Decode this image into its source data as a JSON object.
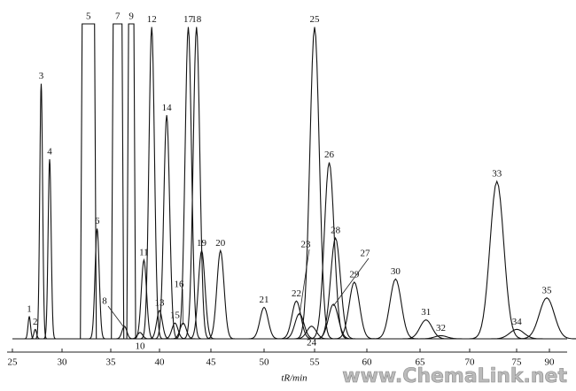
{
  "chart_data": {
    "type": "chromatogram",
    "x_label": "tR/min",
    "watermark": "www.ChemaLink.net",
    "xticks": [
      25,
      30,
      35,
      40,
      45,
      50,
      55,
      60,
      65,
      70,
      75,
      90
    ],
    "ylim": [
      0,
      100
    ],
    "color": "#111111",
    "peaks": [
      {
        "label": "1",
        "x": 26.7,
        "value": 7
      },
      {
        "label": "2",
        "x": 27.3,
        "value": 3
      },
      {
        "label": "3",
        "x": 27.9,
        "value": 81
      },
      {
        "label": "4",
        "x": 28.75,
        "value": 57
      },
      {
        "label": "5",
        "x": 32.7,
        "value": 100
      },
      {
        "label": "6",
        "x": 33.6,
        "value": 35
      },
      {
        "label": "7",
        "x": 35.7,
        "value": 100
      },
      {
        "label": "8",
        "x": 36.4,
        "value": 4
      },
      {
        "label": "9",
        "x": 37.1,
        "value": 100
      },
      {
        "label": "10",
        "x": 38.0,
        "value": 2
      },
      {
        "label": "11",
        "x": 38.4,
        "value": 25
      },
      {
        "label": "12",
        "x": 39.2,
        "value": 99
      },
      {
        "label": "13",
        "x": 40.0,
        "value": 9
      },
      {
        "label": "14",
        "x": 40.7,
        "value": 71
      },
      {
        "label": "15",
        "x": 41.5,
        "value": 5
      },
      {
        "label": "16",
        "x": 42.3,
        "value": 5
      },
      {
        "label": "17",
        "x": 42.8,
        "value": 99
      },
      {
        "label": "18",
        "x": 43.6,
        "value": 99
      },
      {
        "label": "19",
        "x": 44.1,
        "value": 28
      },
      {
        "label": "20",
        "x": 45.9,
        "value": 28
      },
      {
        "label": "21",
        "x": 50.0,
        "value": 10
      },
      {
        "label": "22",
        "x": 53.2,
        "value": 12
      },
      {
        "label": "23",
        "x": 53.5,
        "value": 8
      },
      {
        "label": "24",
        "x": 54.7,
        "value": 4
      },
      {
        "label": "25",
        "x": 55.0,
        "value": 99
      },
      {
        "label": "26",
        "x": 56.4,
        "value": 56
      },
      {
        "label": "27",
        "x": 56.8,
        "value": 11
      },
      {
        "label": "28",
        "x": 57.0,
        "value": 32
      },
      {
        "label": "29",
        "x": 58.8,
        "value": 18
      },
      {
        "label": "30",
        "x": 62.7,
        "value": 19
      },
      {
        "label": "31",
        "x": 65.6,
        "value": 6
      },
      {
        "label": "32",
        "x": 67.1,
        "value": 1
      },
      {
        "label": "33",
        "x": 72.9,
        "value": 50
      },
      {
        "label": "34",
        "x": 75.1,
        "value": 3
      },
      {
        "label": "35",
        "x": 88.8,
        "value": 13
      }
    ]
  }
}
